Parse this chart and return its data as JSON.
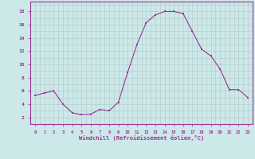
{
  "x": [
    0,
    1,
    2,
    3,
    4,
    5,
    6,
    7,
    8,
    9,
    10,
    11,
    12,
    13,
    14,
    15,
    16,
    17,
    18,
    19,
    20,
    21,
    22,
    23
  ],
  "y": [
    5.3,
    5.7,
    6.0,
    4.0,
    2.7,
    2.4,
    2.5,
    3.2,
    3.0,
    4.3,
    8.8,
    13.0,
    16.3,
    17.5,
    18.0,
    18.0,
    17.7,
    15.0,
    12.3,
    11.3,
    9.3,
    6.2,
    6.2,
    5.0
  ],
  "line_color": "#993399",
  "marker": "s",
  "marker_size": 2,
  "bg_color": "#cce8e8",
  "grid_color": "#b0c8c8",
  "xlabel": "Windchill (Refroidissement éolien,°C)",
  "xlabel_color": "#993399",
  "tick_color": "#993399",
  "ylabel_ticks": [
    2,
    4,
    6,
    8,
    10,
    12,
    14,
    16,
    18
  ],
  "ylim": [
    1.0,
    19.5
  ],
  "xlim": [
    -0.5,
    23.5
  ],
  "spine_color": "#993399"
}
